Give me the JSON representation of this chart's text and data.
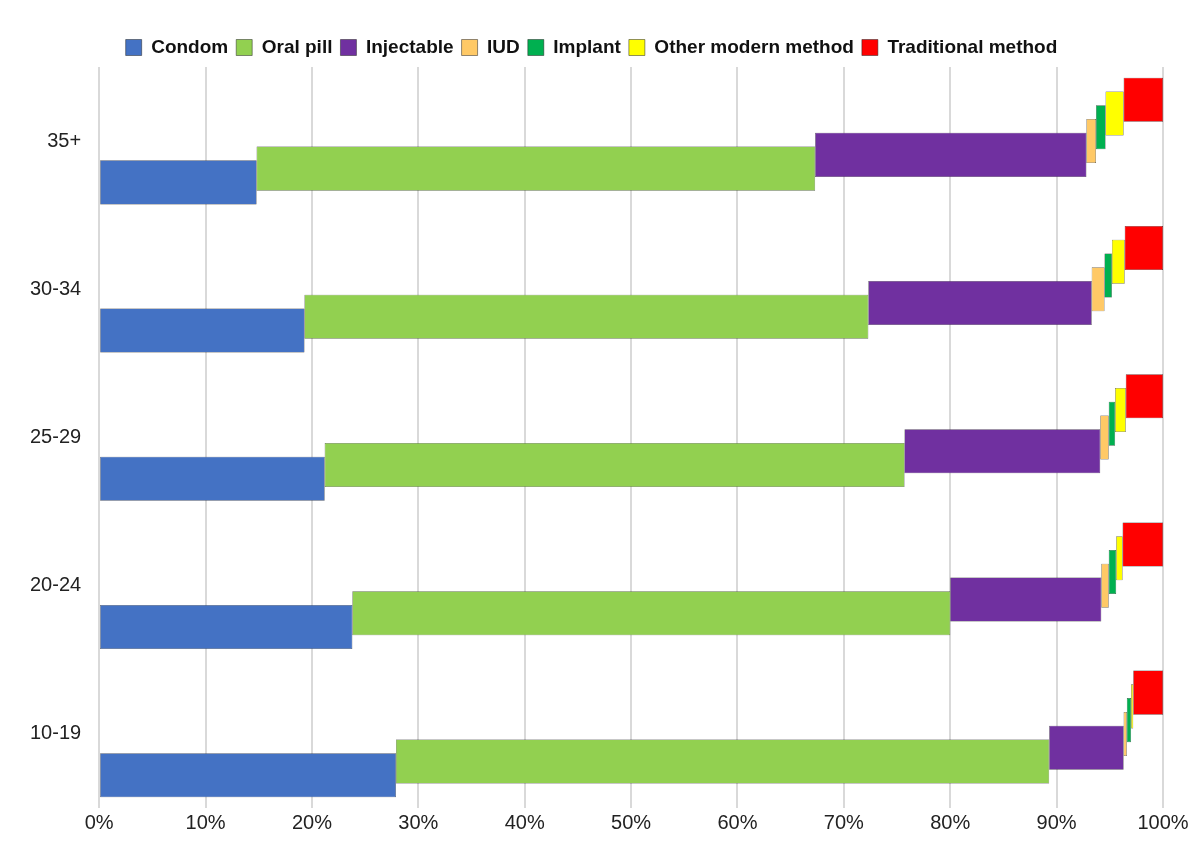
{
  "chart_data": {
    "type": "bar",
    "orientation": "horizontal",
    "stacked": true,
    "categories": [
      "35+",
      "30-34",
      "25-29",
      "20-24",
      "10-19"
    ],
    "series": [
      {
        "name": "Condom",
        "color": "#4472c4",
        "values": [
          14.8,
          19.3,
          21.2,
          23.8,
          27.9
        ]
      },
      {
        "name": "Oral pill",
        "color": "#92d050",
        "values": [
          52.5,
          53.0,
          54.5,
          56.2,
          61.4
        ]
      },
      {
        "name": "Injectable",
        "color": "#7030a0",
        "values": [
          25.5,
          21.0,
          18.4,
          14.2,
          7.0
        ]
      },
      {
        "name": "IUD",
        "color": "#ffc966",
        "values": [
          0.9,
          1.2,
          0.8,
          0.7,
          0.3
        ]
      },
      {
        "name": "Implant",
        "color": "#00b050",
        "values": [
          0.9,
          0.7,
          0.6,
          0.7,
          0.4
        ]
      },
      {
        "name": "Other modern method",
        "color": "#ffff00",
        "values": [
          1.7,
          1.2,
          1.0,
          0.6,
          0.2
        ]
      },
      {
        "name": "Traditional method",
        "color": "#ff0000",
        "values": [
          3.7,
          3.6,
          3.5,
          3.8,
          2.8
        ]
      }
    ],
    "xlim": [
      0,
      100
    ],
    "xticks": [
      {
        "value": 0,
        "label": "0%"
      },
      {
        "value": 10,
        "label": "10%"
      },
      {
        "value": 20,
        "label": "20%"
      },
      {
        "value": 30,
        "label": "30%"
      },
      {
        "value": 40,
        "label": "40%"
      },
      {
        "value": 50,
        "label": "50%"
      },
      {
        "value": 60,
        "label": "60%"
      },
      {
        "value": 70,
        "label": "70%"
      },
      {
        "value": 80,
        "label": "80%"
      },
      {
        "value": 90,
        "label": "90%"
      },
      {
        "value": 100,
        "label": "100%"
      }
    ],
    "grid": "x",
    "legend": "top"
  }
}
